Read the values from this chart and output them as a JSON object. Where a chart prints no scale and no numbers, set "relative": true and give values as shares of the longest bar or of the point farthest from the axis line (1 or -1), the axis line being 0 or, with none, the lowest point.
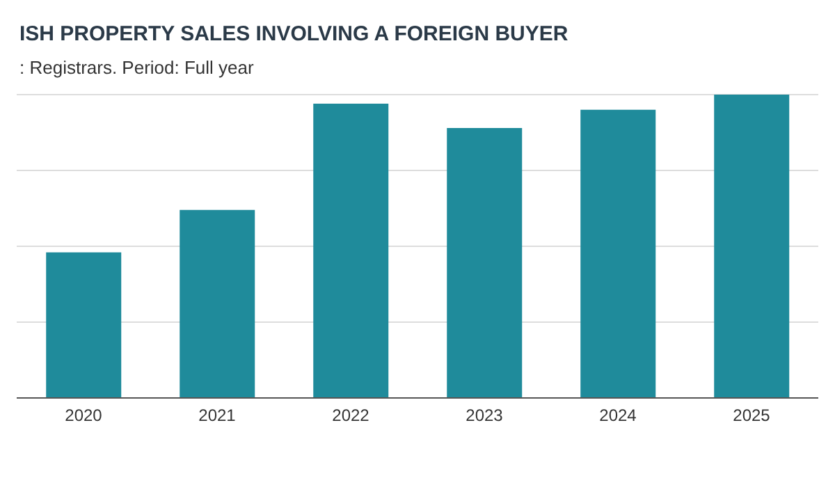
{
  "chart_data": {
    "type": "bar",
    "title": "ISH PROPERTY SALES INVOLVING A FOREIGN BUYER",
    "subtitle": ": Registrars. Period: Full year",
    "categories": [
      "2020",
      "2021",
      "2022",
      "2023",
      "2024",
      "2025"
    ],
    "values": [
      0.48,
      0.62,
      0.97,
      0.89,
      0.95,
      1
    ],
    "color": "#1f8b9b",
    "relative": true,
    "grid": "y"
  }
}
